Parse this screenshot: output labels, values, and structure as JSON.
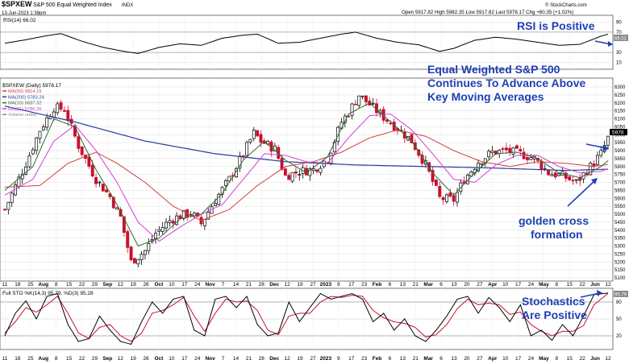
{
  "header": {
    "symbol": "$SPXEW",
    "name": "S&P 500 Equal Weighted Index",
    "exchange": "INDX",
    "date": "13-Jun-2023 1:38pm",
    "quote": "Open 5917.82  High 5982.35  Low 5917.82  Last 5978.17  Chg +60.35 (+1.02%)",
    "chg_symbol": "▲",
    "watermark": "© StockCharts.com"
  },
  "colors": {
    "up_candle": "#000000",
    "down_candle": "#c8102e",
    "ma50": "#d04040",
    "ma200": "#2a3a9a",
    "ma10": "#2e6b2e",
    "ma21": "#d23fd2",
    "rsi_line": "#000000",
    "stoch_k": "#000000",
    "stoch_d": "#c8102e",
    "annotation": "#1f3fb4",
    "grid": "#dcdcdc"
  },
  "annotations": {
    "rsi": "RSI is Positive",
    "price_line1": "Equal Weighted S&P 500",
    "price_line2": "Continues To Advance Above",
    "price_line3": "Key Moving Averages",
    "golden1": "golden cross",
    "golden2": "formation",
    "stoch1": "Stochastics",
    "stoch2": "Are Positive"
  },
  "rsi_panel": {
    "legend": "RSI(14) 66.02",
    "current_label": "66.02",
    "levels": [
      "90",
      "70",
      "30",
      "10"
    ]
  },
  "price_panel": {
    "legend_title": "$SPXEW (Daily) 5978.17",
    "legend_items": [
      {
        "label": "MA(50) 5814.15",
        "color": "#d04040"
      },
      {
        "label": "MA(200) 5783.24",
        "color": "#2a3a9a"
      },
      {
        "label": "MA(10) 5837.32",
        "color": "#2e6b2e"
      },
      {
        "label": "MA(21) 5786.36",
        "color": "#d23fd2"
      },
      {
        "label": "Volume undef",
        "color": "#888888"
      }
    ],
    "current_label": "5978",
    "yticks": [
      "6300",
      "6250",
      "6200",
      "6150",
      "6100",
      "6050",
      "6000",
      "5950",
      "5900",
      "5850",
      "5800",
      "5750",
      "5700",
      "5650",
      "5600",
      "5550",
      "5500",
      "5450",
      "5400",
      "5350",
      "5300",
      "5250",
      "5200",
      "5150",
      "5100"
    ]
  },
  "stoch_panel": {
    "legend": "Full STO %K(14,3) 95.79, %D(3) 95.28",
    "current_label": "95.79",
    "levels": [
      "80",
      "50",
      "20"
    ]
  },
  "x_axis": {
    "labels": [
      "11",
      "18",
      "25",
      "Aug",
      "8",
      "15",
      "22",
      "29",
      "Sep",
      "12",
      "19",
      "26",
      "Oct",
      "10",
      "17",
      "24",
      "Nov",
      "7",
      "14",
      "21",
      "28",
      "Dec",
      "12",
      "19",
      "27",
      "2023",
      "9",
      "17",
      "23",
      "Feb",
      "6",
      "13",
      "21",
      "Mar",
      "6",
      "13",
      "20",
      "27",
      "Apr",
      "10",
      "17",
      "24",
      "May",
      "8",
      "15",
      "22",
      "Jun",
      "12"
    ],
    "bold": [
      "Aug",
      "Sep",
      "Oct",
      "Nov",
      "Dec",
      "2023",
      "Feb",
      "Mar",
      "Apr",
      "May",
      "Jun"
    ]
  },
  "chart_data": {
    "type": "candlestick",
    "title": "$SPXEW S&P 500 Equal Weighted Index",
    "period": "Daily",
    "ylim": [
      5050,
      6350
    ],
    "series_notes": [
      {
        "name": "MA(50)",
        "last": 5814.15
      },
      {
        "name": "MA(200)",
        "last": 5783.24
      },
      {
        "name": "MA(10)",
        "last": 5837.32
      },
      {
        "name": "MA(21)",
        "last": 5786.36
      }
    ],
    "close_path": [
      [
        0,
        5530
      ],
      [
        6,
        5820
      ],
      [
        10,
        6030
      ],
      [
        14,
        6170
      ],
      [
        17,
        6160
      ],
      [
        21,
        5930
      ],
      [
        26,
        5720
      ],
      [
        30,
        5610
      ],
      [
        33,
        5480
      ],
      [
        36,
        5200
      ],
      [
        40,
        5270
      ],
      [
        43,
        5380
      ],
      [
        47,
        5460
      ],
      [
        50,
        5490
      ],
      [
        53,
        5510
      ],
      [
        56,
        5440
      ],
      [
        60,
        5590
      ],
      [
        64,
        5720
      ],
      [
        68,
        5880
      ],
      [
        71,
        6010
      ],
      [
        73,
        5960
      ],
      [
        77,
        5910
      ],
      [
        80,
        5740
      ],
      [
        84,
        5770
      ],
      [
        88,
        5780
      ],
      [
        92,
        5850
      ],
      [
        96,
        6080
      ],
      [
        98,
        6140
      ],
      [
        101,
        6250
      ],
      [
        104,
        6190
      ],
      [
        108,
        6110
      ],
      [
        112,
        6040
      ],
      [
        116,
        5960
      ],
      [
        120,
        5810
      ],
      [
        124,
        5600
      ],
      [
        128,
        5590
      ],
      [
        131,
        5720
      ],
      [
        135,
        5830
      ],
      [
        139,
        5890
      ],
      [
        143,
        5900
      ],
      [
        147,
        5880
      ],
      [
        151,
        5850
      ],
      [
        155,
        5760
      ],
      [
        159,
        5740
      ],
      [
        163,
        5700
      ],
      [
        167,
        5800
      ],
      [
        170,
        5880
      ],
      [
        172,
        5978
      ]
    ],
    "ma10_path": [
      [
        0,
        5650
      ],
      [
        8,
        5800
      ],
      [
        14,
        6100
      ],
      [
        20,
        6050
      ],
      [
        26,
        5780
      ],
      [
        32,
        5560
      ],
      [
        38,
        5300
      ],
      [
        44,
        5350
      ],
      [
        50,
        5470
      ],
      [
        56,
        5500
      ],
      [
        62,
        5630
      ],
      [
        68,
        5840
      ],
      [
        74,
        5960
      ],
      [
        80,
        5840
      ],
      [
        86,
        5760
      ],
      [
        92,
        5860
      ],
      [
        98,
        6130
      ],
      [
        104,
        6200
      ],
      [
        110,
        6080
      ],
      [
        116,
        5960
      ],
      [
        122,
        5760
      ],
      [
        128,
        5620
      ],
      [
        134,
        5760
      ],
      [
        140,
        5880
      ],
      [
        146,
        5890
      ],
      [
        152,
        5850
      ],
      [
        158,
        5760
      ],
      [
        164,
        5730
      ],
      [
        170,
        5800
      ],
      [
        172,
        5837
      ]
    ],
    "ma21_path": [
      [
        0,
        5620
      ],
      [
        8,
        5720
      ],
      [
        14,
        5960
      ],
      [
        20,
        6060
      ],
      [
        26,
        5900
      ],
      [
        32,
        5700
      ],
      [
        38,
        5450
      ],
      [
        44,
        5330
      ],
      [
        50,
        5420
      ],
      [
        56,
        5500
      ],
      [
        62,
        5560
      ],
      [
        68,
        5720
      ],
      [
        74,
        5880
      ],
      [
        80,
        5870
      ],
      [
        86,
        5830
      ],
      [
        92,
        5820
      ],
      [
        98,
        5980
      ],
      [
        104,
        6120
      ],
      [
        110,
        6130
      ],
      [
        116,
        6030
      ],
      [
        122,
        5880
      ],
      [
        128,
        5720
      ],
      [
        134,
        5700
      ],
      [
        140,
        5810
      ],
      [
        146,
        5870
      ],
      [
        152,
        5870
      ],
      [
        158,
        5800
      ],
      [
        164,
        5760
      ],
      [
        170,
        5770
      ],
      [
        172,
        5786
      ]
    ],
    "ma50_path": [
      [
        0,
        5670
      ],
      [
        10,
        5680
      ],
      [
        18,
        5820
      ],
      [
        26,
        5890
      ],
      [
        32,
        5820
      ],
      [
        40,
        5700
      ],
      [
        48,
        5550
      ],
      [
        56,
        5460
      ],
      [
        64,
        5530
      ],
      [
        72,
        5680
      ],
      [
        80,
        5800
      ],
      [
        88,
        5830
      ],
      [
        96,
        5890
      ],
      [
        104,
        5980
      ],
      [
        112,
        6030
      ],
      [
        120,
        5990
      ],
      [
        128,
        5900
      ],
      [
        136,
        5830
      ],
      [
        144,
        5800
      ],
      [
        152,
        5830
      ],
      [
        160,
        5820
      ],
      [
        168,
        5800
      ],
      [
        172,
        5814
      ]
    ],
    "ma200_path": [
      [
        0,
        6180
      ],
      [
        20,
        6080
      ],
      [
        40,
        5960
      ],
      [
        60,
        5880
      ],
      [
        80,
        5830
      ],
      [
        100,
        5810
      ],
      [
        120,
        5800
      ],
      [
        140,
        5790
      ],
      [
        160,
        5775
      ],
      [
        172,
        5783
      ]
    ],
    "rsi_path": [
      [
        0,
        48
      ],
      [
        6,
        55
      ],
      [
        12,
        63
      ],
      [
        16,
        67
      ],
      [
        22,
        52
      ],
      [
        28,
        40
      ],
      [
        34,
        32
      ],
      [
        38,
        28
      ],
      [
        44,
        40
      ],
      [
        50,
        47
      ],
      [
        56,
        44
      ],
      [
        62,
        58
      ],
      [
        68,
        64
      ],
      [
        72,
        66
      ],
      [
        78,
        48
      ],
      [
        84,
        50
      ],
      [
        90,
        58
      ],
      [
        96,
        66
      ],
      [
        100,
        70
      ],
      [
        106,
        58
      ],
      [
        112,
        50
      ],
      [
        118,
        45
      ],
      [
        124,
        32
      ],
      [
        128,
        38
      ],
      [
        134,
        54
      ],
      [
        140,
        60
      ],
      [
        146,
        56
      ],
      [
        152,
        50
      ],
      [
        158,
        44
      ],
      [
        164,
        46
      ],
      [
        170,
        62
      ],
      [
        172,
        66.02
      ]
    ],
    "stoch_k_path": [
      [
        0,
        20
      ],
      [
        3,
        60
      ],
      [
        6,
        82
      ],
      [
        9,
        50
      ],
      [
        12,
        90
      ],
      [
        15,
        95
      ],
      [
        18,
        40
      ],
      [
        21,
        10
      ],
      [
        24,
        15
      ],
      [
        27,
        55
      ],
      [
        30,
        30
      ],
      [
        33,
        10
      ],
      [
        36,
        5
      ],
      [
        39,
        45
      ],
      [
        42,
        80
      ],
      [
        45,
        60
      ],
      [
        48,
        85
      ],
      [
        51,
        90
      ],
      [
        54,
        30
      ],
      [
        57,
        20
      ],
      [
        60,
        85
      ],
      [
        63,
        90
      ],
      [
        66,
        70
      ],
      [
        69,
        90
      ],
      [
        72,
        40
      ],
      [
        75,
        20
      ],
      [
        78,
        25
      ],
      [
        81,
        80
      ],
      [
        84,
        45
      ],
      [
        87,
        70
      ],
      [
        90,
        95
      ],
      [
        93,
        85
      ],
      [
        96,
        90
      ],
      [
        99,
        95
      ],
      [
        102,
        85
      ],
      [
        105,
        45
      ],
      [
        108,
        60
      ],
      [
        111,
        30
      ],
      [
        114,
        50
      ],
      [
        117,
        20
      ],
      [
        120,
        10
      ],
      [
        123,
        30
      ],
      [
        126,
        55
      ],
      [
        129,
        85
      ],
      [
        132,
        90
      ],
      [
        135,
        60
      ],
      [
        138,
        88
      ],
      [
        141,
        70
      ],
      [
        144,
        45
      ],
      [
        147,
        75
      ],
      [
        150,
        20
      ],
      [
        153,
        30
      ],
      [
        156,
        12
      ],
      [
        159,
        40
      ],
      [
        162,
        20
      ],
      [
        165,
        55
      ],
      [
        168,
        93
      ],
      [
        172,
        95.79
      ]
    ],
    "stoch_d_path": [
      [
        0,
        25
      ],
      [
        3,
        45
      ],
      [
        6,
        70
      ],
      [
        9,
        62
      ],
      [
        12,
        75
      ],
      [
        15,
        90
      ],
      [
        18,
        60
      ],
      [
        21,
        25
      ],
      [
        24,
        15
      ],
      [
        27,
        35
      ],
      [
        30,
        40
      ],
      [
        33,
        20
      ],
      [
        36,
        10
      ],
      [
        39,
        25
      ],
      [
        42,
        60
      ],
      [
        45,
        65
      ],
      [
        48,
        75
      ],
      [
        51,
        88
      ],
      [
        54,
        55
      ],
      [
        57,
        28
      ],
      [
        60,
        60
      ],
      [
        63,
        85
      ],
      [
        66,
        80
      ],
      [
        69,
        82
      ],
      [
        72,
        65
      ],
      [
        75,
        30
      ],
      [
        78,
        22
      ],
      [
        81,
        55
      ],
      [
        84,
        60
      ],
      [
        87,
        60
      ],
      [
        90,
        80
      ],
      [
        93,
        90
      ],
      [
        96,
        88
      ],
      [
        99,
        92
      ],
      [
        102,
        90
      ],
      [
        105,
        65
      ],
      [
        108,
        52
      ],
      [
        111,
        45
      ],
      [
        114,
        42
      ],
      [
        117,
        35
      ],
      [
        120,
        18
      ],
      [
        123,
        22
      ],
      [
        126,
        40
      ],
      [
        129,
        68
      ],
      [
        132,
        85
      ],
      [
        135,
        75
      ],
      [
        138,
        78
      ],
      [
        141,
        75
      ],
      [
        144,
        58
      ],
      [
        147,
        62
      ],
      [
        150,
        40
      ],
      [
        153,
        28
      ],
      [
        156,
        20
      ],
      [
        159,
        28
      ],
      [
        162,
        28
      ],
      [
        165,
        38
      ],
      [
        168,
        75
      ],
      [
        172,
        95.28
      ]
    ]
  }
}
